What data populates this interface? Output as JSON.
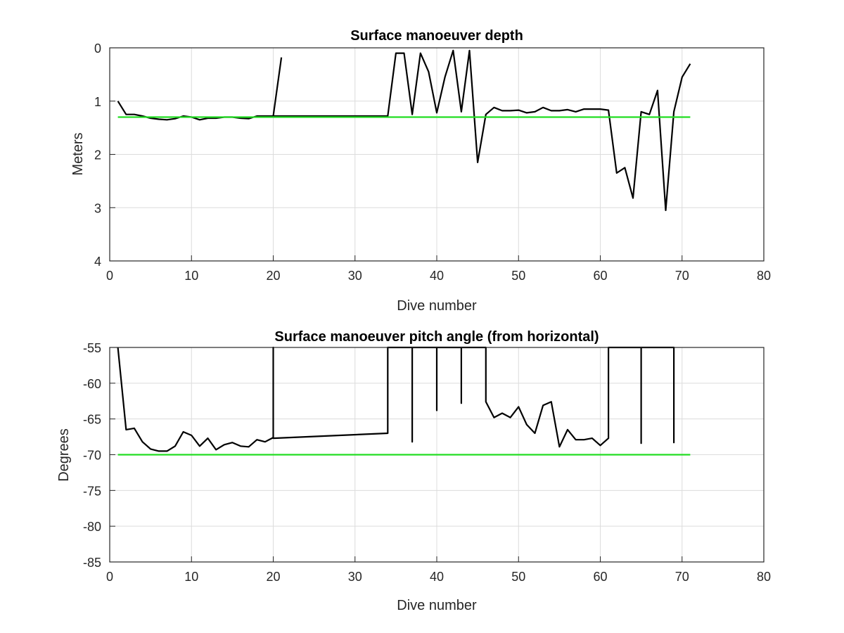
{
  "chart_data": [
    {
      "type": "line",
      "title": "Surface manoeuver depth",
      "xlabel": "Dive number",
      "ylabel": "Meters",
      "xlim": [
        0,
        80
      ],
      "ylim": [
        4,
        0
      ],
      "y_reversed": true,
      "xticks": [
        "0",
        "10",
        "20",
        "30",
        "40",
        "50",
        "60",
        "70",
        "80"
      ],
      "yticks": [
        "0",
        "1",
        "2",
        "3",
        "4"
      ],
      "grid": true,
      "series": [
        {
          "color": "#000000",
          "x": [
            1,
            2,
            3,
            4,
            5,
            6,
            7,
            8,
            9,
            10,
            11,
            12,
            13,
            14,
            15,
            16,
            17,
            18,
            19,
            20,
            21,
            null,
            20,
            34,
            35,
            36,
            37,
            38,
            39,
            40,
            41,
            42,
            43,
            44,
            45,
            46,
            47,
            48,
            49,
            50,
            51,
            52,
            53,
            54,
            55,
            56,
            57,
            58,
            59,
            60,
            61,
            62,
            63,
            64,
            65,
            66,
            67,
            68,
            69,
            70,
            71
          ],
          "y": [
            1.0,
            1.25,
            1.25,
            1.28,
            1.32,
            1.34,
            1.35,
            1.33,
            1.28,
            1.3,
            1.35,
            1.32,
            1.32,
            1.3,
            1.3,
            1.32,
            1.33,
            1.28,
            1.28,
            1.28,
            0.18,
            null,
            1.28,
            1.28,
            0.1,
            0.1,
            1.25,
            0.1,
            0.45,
            1.22,
            0.55,
            0.05,
            1.2,
            0.05,
            2.15,
            1.25,
            1.12,
            1.18,
            1.18,
            1.17,
            1.22,
            1.2,
            1.12,
            1.18,
            1.18,
            1.16,
            1.2,
            1.15,
            1.15,
            1.15,
            1.17,
            2.35,
            2.25,
            2.82,
            1.2,
            1.25,
            0.8,
            3.05,
            1.2,
            0.55,
            0.3
          ]
        },
        {
          "color": "#22dd22",
          "x": [
            1,
            71
          ],
          "y": [
            1.3,
            1.3
          ]
        }
      ]
    },
    {
      "type": "line",
      "title": "Surface manoeuver pitch angle (from horizontal)",
      "xlabel": "Dive number",
      "ylabel": "Degrees",
      "xlim": [
        0,
        80
      ],
      "ylim": [
        -85,
        -55
      ],
      "xticks": [
        "0",
        "10",
        "20",
        "30",
        "40",
        "50",
        "60",
        "70",
        "80"
      ],
      "yticks": [
        "-55",
        "-60",
        "-65",
        "-70",
        "-75",
        "-80",
        "-85"
      ],
      "grid": true,
      "series": [
        {
          "color": "#000000",
          "x": [
            1,
            2,
            3,
            4,
            5,
            6,
            7,
            8,
            9,
            10,
            11,
            12,
            13,
            14,
            15,
            16,
            17,
            18,
            19,
            20,
            20,
            20,
            34,
            34,
            37,
            37,
            37,
            40,
            40,
            40,
            43,
            43,
            43,
            46,
            46,
            47,
            48,
            49,
            50,
            51,
            52,
            53,
            54,
            55,
            56,
            57,
            58,
            59,
            60,
            61,
            61,
            65,
            65,
            65,
            69,
            69,
            69
          ],
          "y": [
            -55,
            -66.5,
            -66.3,
            -68.2,
            -69.2,
            -69.5,
            -69.5,
            -68.8,
            -66.8,
            -67.3,
            -68.8,
            -67.7,
            -69.3,
            -68.6,
            -68.3,
            -68.8,
            -68.9,
            -67.9,
            -68.2,
            -67.6,
            -55,
            -67.7,
            -67.0,
            -55,
            -55,
            -68.2,
            -55,
            -55,
            -63.8,
            -55,
            -55,
            -62.8,
            -55,
            -55,
            -62.6,
            -64.8,
            -64.2,
            -64.8,
            -63.3,
            -65.8,
            -67.0,
            -63.1,
            -62.6,
            -68.9,
            -66.5,
            -67.9,
            -67.9,
            -67.7,
            -68.7,
            -67.7,
            -55,
            -55,
            -68.4,
            -55,
            -55,
            -68.3,
            -55
          ]
        },
        {
          "color": "#22dd22",
          "x": [
            1,
            71
          ],
          "y": [
            -70,
            -70
          ]
        }
      ]
    }
  ]
}
